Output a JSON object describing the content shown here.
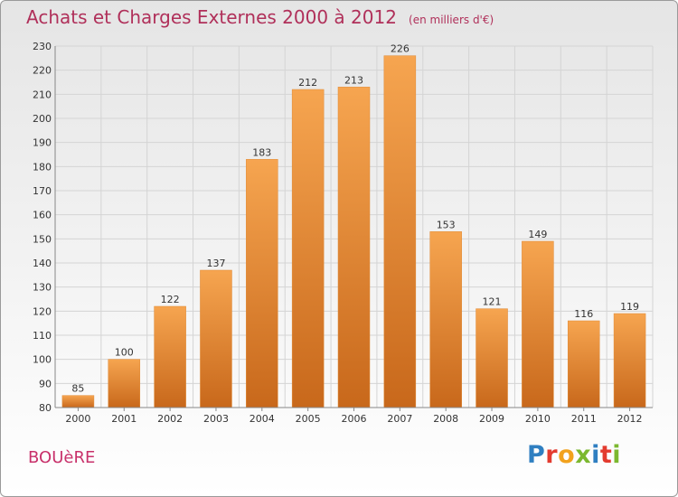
{
  "header": {
    "title": "Achats et Charges Externes 2000 à 2012",
    "unit": "(en milliers d'€)"
  },
  "location": "BOUèRE",
  "logo": {
    "text": "Proxiti",
    "colors": [
      "#2f7fc1",
      "#e33b2f",
      "#f2a21d",
      "#7cb82f",
      "#2f7fc1",
      "#e33b2f",
      "#7cb82f"
    ]
  },
  "colors": {
    "bar_light": "#f6a550",
    "bar_dark": "#c8681b",
    "title": "#b0305a"
  },
  "chart_data": {
    "type": "bar",
    "title": "Achats et Charges Externes 2000 à 2012",
    "subtitle": "(en milliers d'€)",
    "xlabel": "",
    "ylabel": "",
    "categories": [
      "2000",
      "2001",
      "2002",
      "2003",
      "2004",
      "2005",
      "2006",
      "2007",
      "2008",
      "2009",
      "2010",
      "2011",
      "2012"
    ],
    "values": [
      85,
      100,
      122,
      137,
      183,
      212,
      213,
      226,
      153,
      121,
      149,
      116,
      119
    ],
    "ylim": [
      80,
      230
    ],
    "yticks": [
      80,
      90,
      100,
      110,
      120,
      130,
      140,
      150,
      160,
      170,
      180,
      190,
      200,
      210,
      220,
      230
    ],
    "grid": true
  }
}
